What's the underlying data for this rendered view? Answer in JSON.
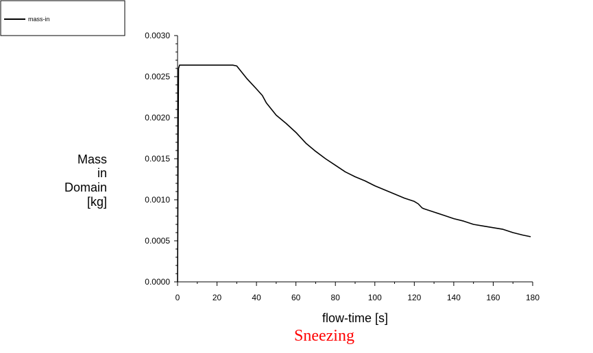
{
  "chart_data": {
    "type": "line",
    "xlabel": "flow-time [s]",
    "ylabel": [
      "Mass",
      "in",
      "Domain",
      "[kg]"
    ],
    "xlim": [
      0,
      180
    ],
    "ylim": [
      0,
      0.003
    ],
    "x_ticks": [
      "0",
      "20",
      "40",
      "60",
      "80",
      "100",
      "120",
      "140",
      "160",
      "180"
    ],
    "y_ticks": [
      "0.0000",
      "0.0005",
      "0.0010",
      "0.0015",
      "0.0020",
      "0.0025",
      "0.0030"
    ],
    "grid": false,
    "legend": "top-left",
    "series": [
      {
        "name": "mass-in",
        "color": "#000000",
        "x": [
          0,
          0.5,
          1,
          10,
          20,
          28,
          30,
          31,
          35,
          40,
          43,
          45,
          50,
          55,
          60,
          65,
          70,
          75,
          80,
          85,
          90,
          95,
          100,
          105,
          110,
          115,
          120,
          122,
          124,
          125,
          130,
          135,
          140,
          145,
          150,
          155,
          160,
          165,
          170,
          175,
          179
        ],
        "y": [
          0.0,
          0.0026,
          0.00264,
          0.00264,
          0.00264,
          0.00264,
          0.00263,
          0.0026,
          0.00248,
          0.00235,
          0.00227,
          0.00218,
          0.00203,
          0.00193,
          0.00182,
          0.00169,
          0.00159,
          0.0015,
          0.00142,
          0.00134,
          0.00128,
          0.00123,
          0.00117,
          0.00112,
          0.00107,
          0.00102,
          0.00098,
          0.00095,
          0.0009,
          0.00089,
          0.00085,
          0.00081,
          0.00077,
          0.00074,
          0.0007,
          0.00068,
          0.00066,
          0.00064,
          0.0006,
          0.00057,
          0.00055
        ]
      }
    ]
  },
  "caption": {
    "text": "Sneezing",
    "color": "#ff0000"
  }
}
